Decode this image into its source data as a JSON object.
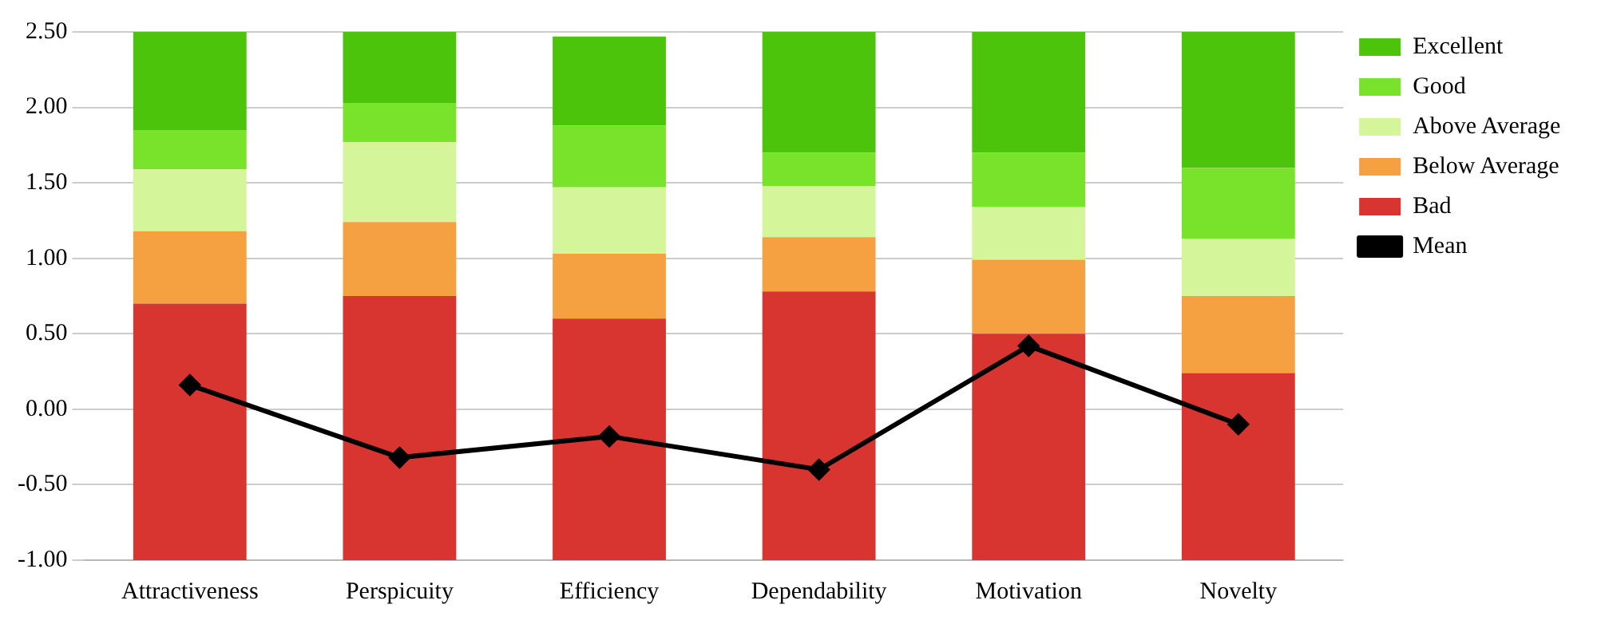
{
  "chart_data": {
    "type": "bar",
    "categories": [
      "Attractiveness",
      "Perspicuity",
      "Efficiency",
      "Dependability",
      "Motivation",
      "Novelty"
    ],
    "series": [
      {
        "name": "Bad",
        "color": "#d93530",
        "base": [
          -1,
          -1,
          -1,
          -1,
          -1,
          -1
        ],
        "values": [
          1.7,
          1.75,
          1.6,
          1.78,
          1.5,
          1.24
        ]
      },
      {
        "name": "Below Average",
        "color": "#f5a142",
        "base": [
          0.7,
          0.75,
          0.6,
          0.78,
          0.5,
          0.24
        ],
        "values": [
          0.48,
          0.49,
          0.43,
          0.36,
          0.49,
          0.51
        ]
      },
      {
        "name": "Above Average",
        "color": "#d4f59a",
        "base": [
          1.18,
          1.24,
          1.03,
          1.14,
          0.99,
          0.75
        ],
        "values": [
          0.41,
          0.53,
          0.44,
          0.34,
          0.35,
          0.38
        ]
      },
      {
        "name": "Good",
        "color": "#79e22a",
        "base": [
          1.59,
          1.77,
          1.47,
          1.48,
          1.34,
          1.13
        ],
        "values": [
          0.26,
          0.26,
          0.41,
          0.22,
          0.36,
          0.47
        ]
      },
      {
        "name": "Excellent",
        "color": "#4cc40c",
        "base": [
          1.85,
          2.03,
          1.88,
          1.7,
          1.7,
          1.6
        ],
        "values": [
          0.65,
          0.47,
          0.59,
          0.8,
          0.8,
          0.9
        ]
      },
      {
        "name": "Mean",
        "type": "line",
        "color": "#000000",
        "marker": "diamond",
        "values": [
          0.16,
          -0.32,
          -0.18,
          -0.4,
          0.42,
          -0.1
        ]
      }
    ],
    "ylim": [
      -1,
      2.5
    ],
    "yticks": [
      {
        "value": -1,
        "label": "-1.00"
      },
      {
        "value": -0.5,
        "label": "-0.50"
      },
      {
        "value": 0,
        "label": "0.00"
      },
      {
        "value": 0.5,
        "label": "0.50"
      },
      {
        "value": 1,
        "label": "1.00"
      },
      {
        "value": 1.5,
        "label": "1.50"
      },
      {
        "value": 2,
        "label": "2.00"
      },
      {
        "value": 2.5,
        "label": "2.50"
      }
    ],
    "grid": "y",
    "legend": "right"
  }
}
